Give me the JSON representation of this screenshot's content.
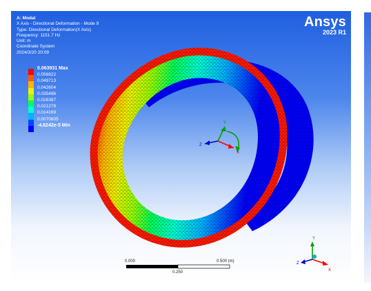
{
  "info": {
    "analysis": "A: Modal",
    "result": "X Axis - Directional Deformation - Mode 9",
    "type": "Type: Directional Deformation(X Axis)",
    "frequency": "Frequency: 1151.7 Hz",
    "unit": "Unit: m",
    "coordinate_system": "Coordinate System",
    "date": "2024/3/20 20:09"
  },
  "logo": {
    "brand": "Ansys",
    "version": "2023 R1"
  },
  "legend": {
    "max": "0.063931 Max",
    "values": [
      "0.056822",
      "0.049713",
      "0.042604",
      "0.035496",
      "0.028387",
      "0.021278",
      "0.014169",
      "0.0070605"
    ],
    "min": "-4.8242e-5 Min",
    "colors": [
      "#ff0000",
      "#ff5a00",
      "#ffb400",
      "#f0f000",
      "#96ff00",
      "#00ff5a",
      "#00ffd2",
      "#00b4ff",
      "#0046ff",
      "#0000ff"
    ]
  },
  "triad": {
    "x": "X",
    "y": "Y",
    "z": "Z"
  },
  "scale_bar": {
    "left": "0.000",
    "right": "0.500 (m)",
    "mid": "0.250"
  }
}
